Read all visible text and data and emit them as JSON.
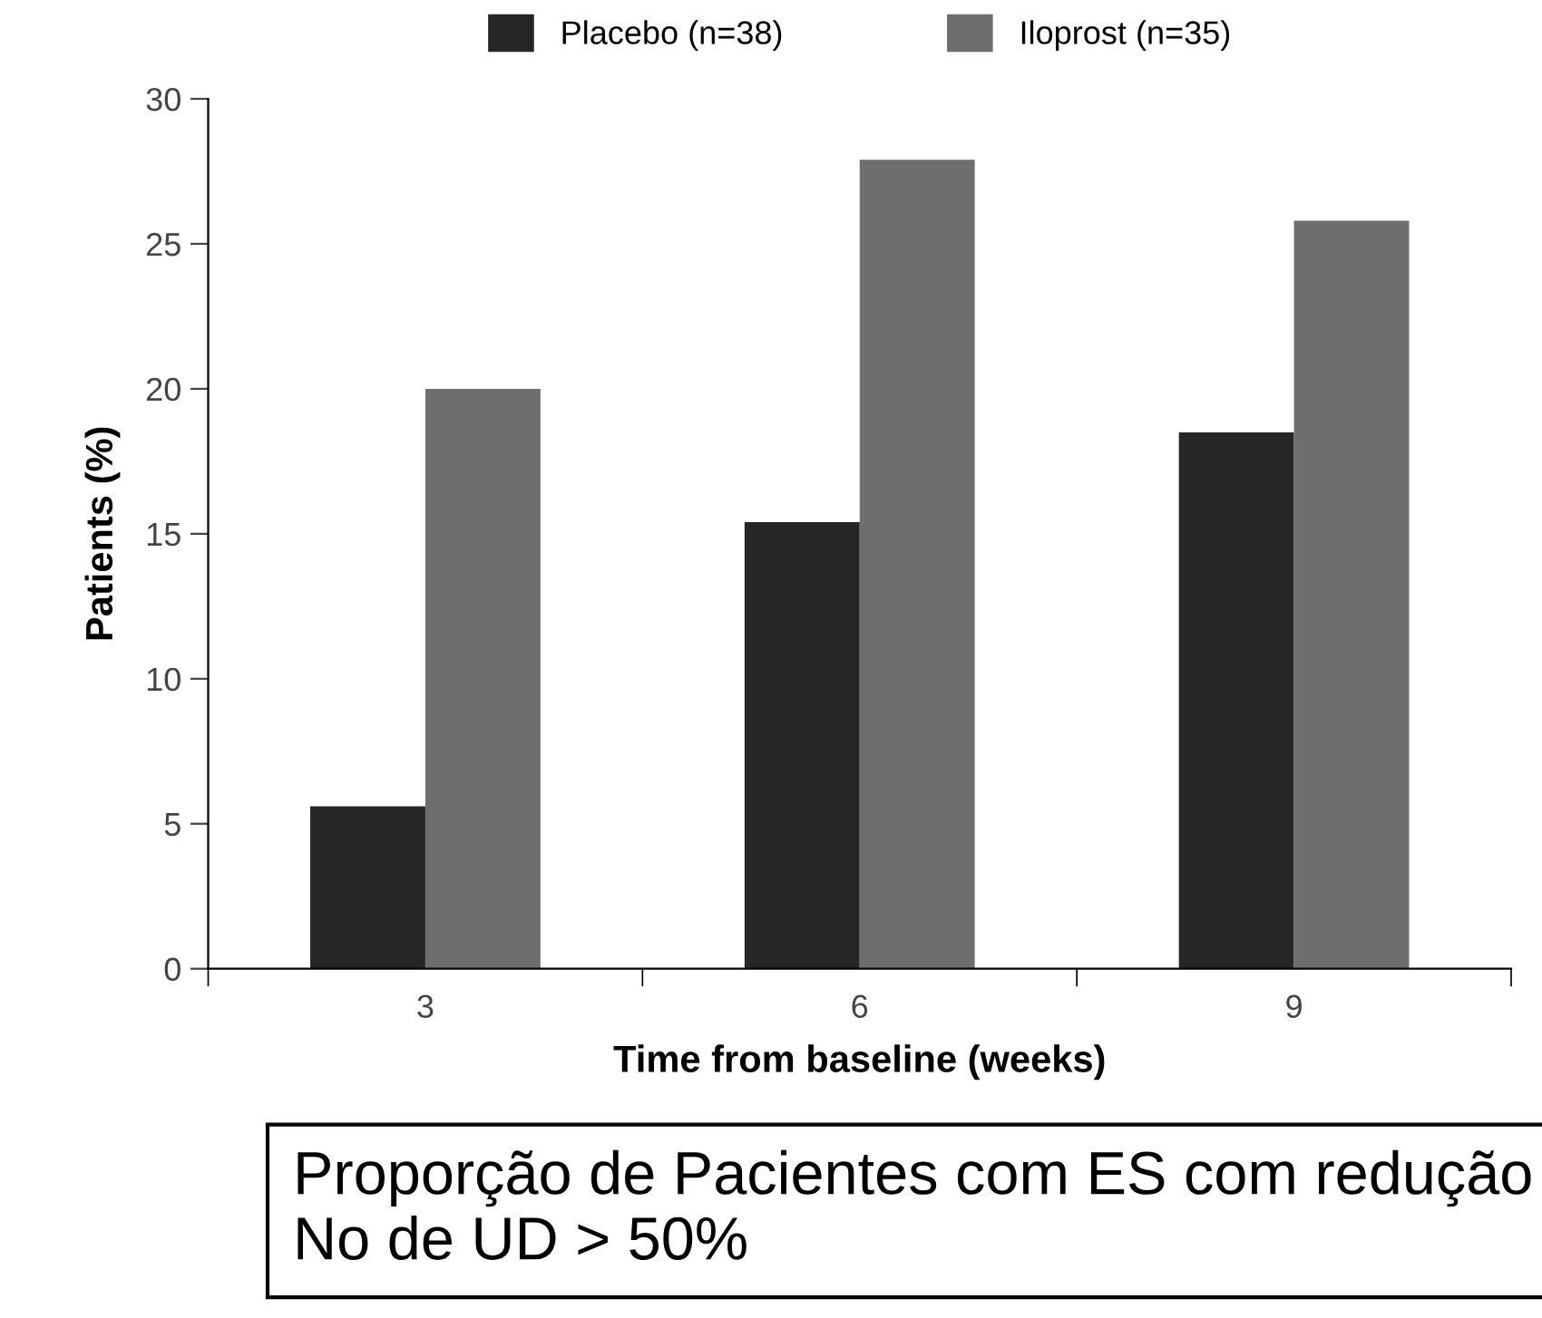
{
  "chart_data": {
    "type": "bar",
    "xlabel": "Time from baseline (weeks)",
    "ylabel": "Patients (%)",
    "categories": [
      "3",
      "6",
      "9"
    ],
    "series": [
      {
        "name": "Placebo (n=38)",
        "color": "#262626",
        "values": [
          5.6,
          15.4,
          18.5
        ]
      },
      {
        "name": "Iloprost (n=35)",
        "color": "#6e6e6e",
        "values": [
          20,
          27.9,
          25.8
        ]
      }
    ],
    "ylim": [
      0,
      30
    ],
    "yticks": [
      0,
      5,
      10,
      15,
      20,
      25,
      30
    ],
    "grid": false,
    "legend": "top",
    "annotations": [
      "Proporção de Pacientes com ES com redução No de UD > 50%"
    ]
  }
}
